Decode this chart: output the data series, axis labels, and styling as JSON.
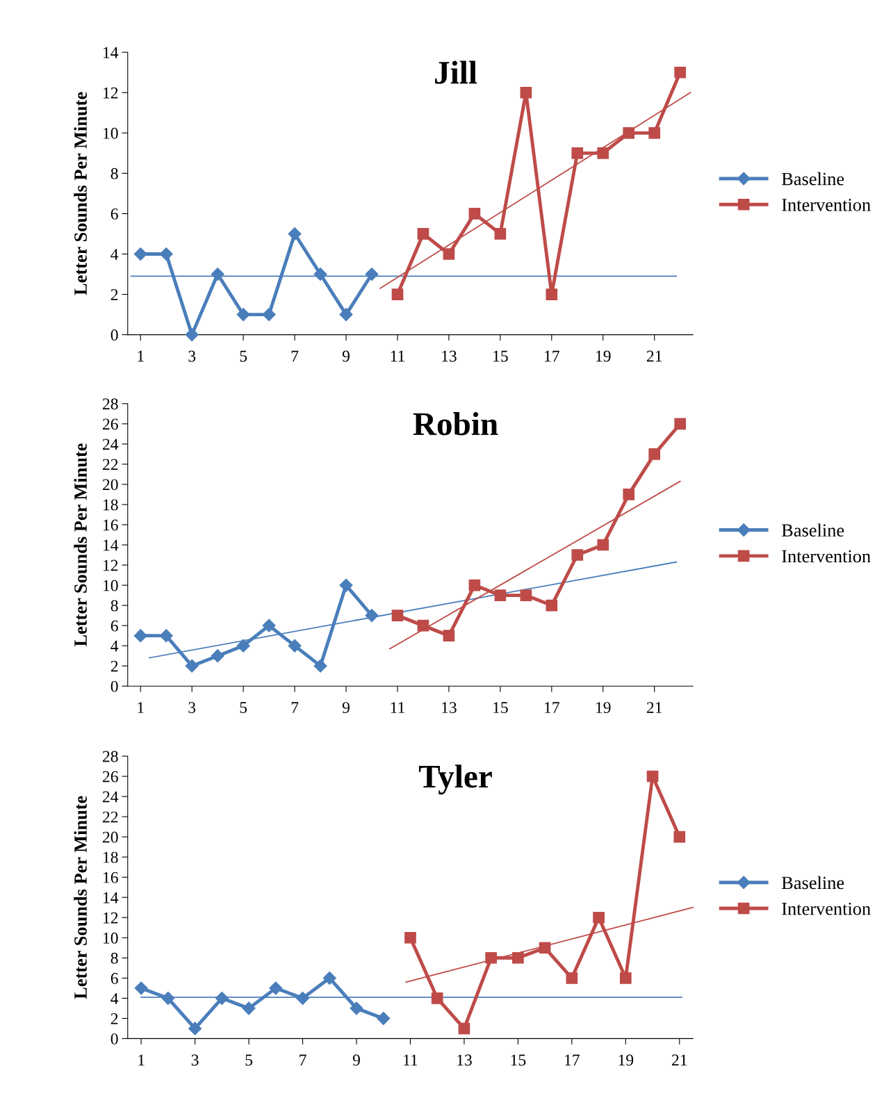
{
  "chart_data": [
    {
      "type": "line",
      "title": "Jill",
      "ylabel": "Letter Sounds Per Minute",
      "xlim": [
        0.5,
        22.5
      ],
      "xticks": [
        1,
        3,
        5,
        7,
        9,
        11,
        13,
        15,
        17,
        19,
        21
      ],
      "ylim": [
        0,
        14
      ],
      "yticks": [
        0,
        2,
        4,
        6,
        8,
        10,
        12,
        14
      ],
      "grid": false,
      "legend": "right",
      "series": [
        {
          "name": "Baseline",
          "color": "#4a7ebb",
          "marker": "diamond",
          "x": [
            1,
            2,
            3,
            4,
            5,
            6,
            7,
            8,
            9,
            10
          ],
          "values": [
            4,
            4,
            0,
            3,
            1,
            1,
            5,
            3,
            1,
            3
          ]
        },
        {
          "name": "Intervention",
          "color": "#be4b48",
          "marker": "square",
          "x": [
            11,
            12,
            13,
            14,
            15,
            16,
            17,
            18,
            19,
            20,
            21,
            22
          ],
          "values": [
            2,
            5,
            4,
            6,
            5,
            12,
            2,
            9,
            9,
            10,
            10,
            13
          ]
        },
        {
          "color": "#4a7ebb",
          "marker": "none",
          "x": [
            0.63,
            21.85
          ],
          "values": [
            2.9,
            2.9
          ]
        },
        {
          "color": "#be4b48",
          "marker": "none",
          "x": [
            10.33,
            22.4
          ],
          "values": [
            2.3,
            12
          ]
        }
      ]
    },
    {
      "type": "line",
      "title": "Robin",
      "ylabel": "Letter Sounds Per Minute",
      "xlim": [
        0.5,
        22.5
      ],
      "xticks": [
        1,
        3,
        5,
        7,
        9,
        11,
        13,
        15,
        17,
        19,
        21
      ],
      "ylim": [
        0,
        28
      ],
      "yticks": [
        0,
        2,
        4,
        6,
        8,
        10,
        12,
        14,
        16,
        18,
        20,
        22,
        24,
        26,
        28
      ],
      "grid": false,
      "legend": "right",
      "series": [
        {
          "name": "Baseline",
          "color": "#4a7ebb",
          "marker": "diamond",
          "x": [
            1,
            2,
            3,
            4,
            5,
            6,
            7,
            8,
            9,
            10
          ],
          "values": [
            5,
            5,
            2,
            3,
            4,
            6,
            4,
            2,
            10,
            7
          ]
        },
        {
          "name": "Intervention",
          "color": "#be4b48",
          "marker": "square",
          "x": [
            11,
            12,
            13,
            14,
            15,
            16,
            17,
            18,
            19,
            20,
            21,
            22
          ],
          "values": [
            7,
            6,
            5,
            10,
            9,
            9,
            8,
            13,
            14,
            19,
            23,
            26
          ]
        },
        {
          "color": "#4a7ebb",
          "marker": "none",
          "x": [
            1.34,
            21.85
          ],
          "values": [
            2.8,
            12.3
          ]
        },
        {
          "color": "#be4b48",
          "marker": "none",
          "x": [
            10.7,
            22
          ],
          "values": [
            3.7,
            20.3
          ]
        }
      ]
    },
    {
      "type": "line",
      "title": "Tyler",
      "ylabel": "Letter Sounds Per Minute",
      "xlim": [
        0.5,
        21.5
      ],
      "xticks": [
        1,
        3,
        5,
        7,
        9,
        11,
        13,
        15,
        17,
        19,
        21
      ],
      "ylim": [
        0,
        28
      ],
      "yticks": [
        0,
        2,
        4,
        6,
        8,
        10,
        12,
        14,
        16,
        18,
        20,
        22,
        24,
        26,
        28
      ],
      "grid": false,
      "legend": "right",
      "series": [
        {
          "name": "Baseline",
          "color": "#4a7ebb",
          "marker": "diamond",
          "x": [
            1,
            2,
            3,
            4,
            5,
            6,
            7,
            8,
            9,
            10
          ],
          "values": [
            5,
            4,
            1,
            4,
            3,
            5,
            4,
            6,
            3,
            2
          ]
        },
        {
          "name": "Intervention",
          "color": "#be4b48",
          "marker": "square",
          "x": [
            11,
            12,
            13,
            14,
            15,
            16,
            17,
            18,
            19,
            20,
            21
          ],
          "values": [
            10,
            4,
            1,
            8,
            8,
            9,
            6,
            12,
            6,
            26,
            20
          ]
        },
        {
          "color": "#4a7ebb",
          "marker": "none",
          "x": [
            1,
            21.08
          ],
          "values": [
            4.1,
            4.1
          ]
        },
        {
          "color": "#be4b48",
          "marker": "none",
          "x": [
            10.84,
            21.5
          ],
          "values": [
            5.6,
            13.0
          ]
        }
      ]
    }
  ]
}
